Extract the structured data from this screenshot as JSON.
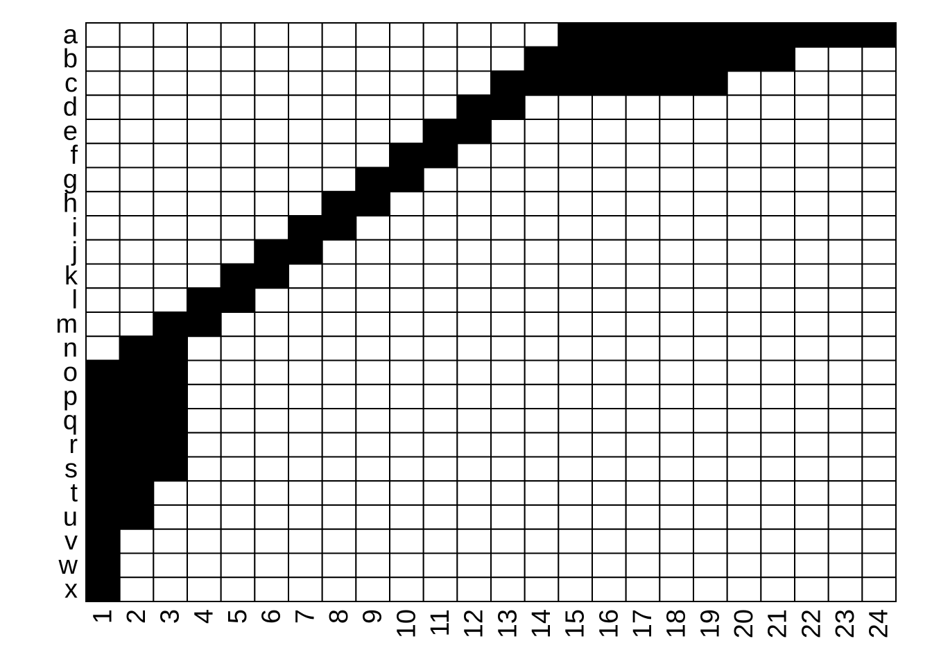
{
  "chart_data": {
    "type": "heatmap",
    "title": "",
    "xlabel": "",
    "ylabel": "",
    "rows": [
      "a",
      "b",
      "c",
      "d",
      "e",
      "f",
      "g",
      "h",
      "i",
      "j",
      "k",
      "l",
      "m",
      "n",
      "o",
      "p",
      "q",
      "r",
      "s",
      "t",
      "u",
      "v",
      "w",
      "x"
    ],
    "columns": [
      "1",
      "2",
      "3",
      "4",
      "5",
      "6",
      "7",
      "8",
      "9",
      "10",
      "11",
      "12",
      "13",
      "14",
      "15",
      "16",
      "17",
      "18",
      "19",
      "20",
      "21",
      "22",
      "23",
      "24"
    ],
    "filled_color": "#000000",
    "empty_color": "#ffffff",
    "grid": true,
    "values": [
      [
        0,
        0,
        0,
        0,
        0,
        0,
        0,
        0,
        0,
        0,
        0,
        0,
        0,
        0,
        1,
        1,
        1,
        1,
        1,
        1,
        1,
        1,
        1,
        1
      ],
      [
        0,
        0,
        0,
        0,
        0,
        0,
        0,
        0,
        0,
        0,
        0,
        0,
        0,
        1,
        1,
        1,
        1,
        1,
        1,
        1,
        1,
        0,
        0,
        0
      ],
      [
        0,
        0,
        0,
        0,
        0,
        0,
        0,
        0,
        0,
        0,
        0,
        0,
        1,
        1,
        1,
        1,
        1,
        1,
        1,
        0,
        0,
        0,
        0,
        0
      ],
      [
        0,
        0,
        0,
        0,
        0,
        0,
        0,
        0,
        0,
        0,
        0,
        1,
        1,
        0,
        0,
        0,
        0,
        0,
        0,
        0,
        0,
        0,
        0,
        0
      ],
      [
        0,
        0,
        0,
        0,
        0,
        0,
        0,
        0,
        0,
        0,
        1,
        1,
        0,
        0,
        0,
        0,
        0,
        0,
        0,
        0,
        0,
        0,
        0,
        0
      ],
      [
        0,
        0,
        0,
        0,
        0,
        0,
        0,
        0,
        0,
        1,
        1,
        0,
        0,
        0,
        0,
        0,
        0,
        0,
        0,
        0,
        0,
        0,
        0,
        0
      ],
      [
        0,
        0,
        0,
        0,
        0,
        0,
        0,
        0,
        1,
        1,
        0,
        0,
        0,
        0,
        0,
        0,
        0,
        0,
        0,
        0,
        0,
        0,
        0,
        0
      ],
      [
        0,
        0,
        0,
        0,
        0,
        0,
        0,
        1,
        1,
        0,
        0,
        0,
        0,
        0,
        0,
        0,
        0,
        0,
        0,
        0,
        0,
        0,
        0,
        0
      ],
      [
        0,
        0,
        0,
        0,
        0,
        0,
        1,
        1,
        0,
        0,
        0,
        0,
        0,
        0,
        0,
        0,
        0,
        0,
        0,
        0,
        0,
        0,
        0,
        0
      ],
      [
        0,
        0,
        0,
        0,
        0,
        1,
        1,
        0,
        0,
        0,
        0,
        0,
        0,
        0,
        0,
        0,
        0,
        0,
        0,
        0,
        0,
        0,
        0,
        0
      ],
      [
        0,
        0,
        0,
        0,
        1,
        1,
        0,
        0,
        0,
        0,
        0,
        0,
        0,
        0,
        0,
        0,
        0,
        0,
        0,
        0,
        0,
        0,
        0,
        0
      ],
      [
        0,
        0,
        0,
        1,
        1,
        0,
        0,
        0,
        0,
        0,
        0,
        0,
        0,
        0,
        0,
        0,
        0,
        0,
        0,
        0,
        0,
        0,
        0,
        0
      ],
      [
        0,
        0,
        1,
        1,
        0,
        0,
        0,
        0,
        0,
        0,
        0,
        0,
        0,
        0,
        0,
        0,
        0,
        0,
        0,
        0,
        0,
        0,
        0,
        0
      ],
      [
        0,
        1,
        1,
        0,
        0,
        0,
        0,
        0,
        0,
        0,
        0,
        0,
        0,
        0,
        0,
        0,
        0,
        0,
        0,
        0,
        0,
        0,
        0,
        0
      ],
      [
        1,
        1,
        1,
        0,
        0,
        0,
        0,
        0,
        0,
        0,
        0,
        0,
        0,
        0,
        0,
        0,
        0,
        0,
        0,
        0,
        0,
        0,
        0,
        0
      ],
      [
        1,
        1,
        1,
        0,
        0,
        0,
        0,
        0,
        0,
        0,
        0,
        0,
        0,
        0,
        0,
        0,
        0,
        0,
        0,
        0,
        0,
        0,
        0,
        0
      ],
      [
        1,
        1,
        1,
        0,
        0,
        0,
        0,
        0,
        0,
        0,
        0,
        0,
        0,
        0,
        0,
        0,
        0,
        0,
        0,
        0,
        0,
        0,
        0,
        0
      ],
      [
        1,
        1,
        1,
        0,
        0,
        0,
        0,
        0,
        0,
        0,
        0,
        0,
        0,
        0,
        0,
        0,
        0,
        0,
        0,
        0,
        0,
        0,
        0,
        0
      ],
      [
        1,
        1,
        1,
        0,
        0,
        0,
        0,
        0,
        0,
        0,
        0,
        0,
        0,
        0,
        0,
        0,
        0,
        0,
        0,
        0,
        0,
        0,
        0,
        0
      ],
      [
        1,
        1,
        0,
        0,
        0,
        0,
        0,
        0,
        0,
        0,
        0,
        0,
        0,
        0,
        0,
        0,
        0,
        0,
        0,
        0,
        0,
        0,
        0,
        0
      ],
      [
        1,
        1,
        0,
        0,
        0,
        0,
        0,
        0,
        0,
        0,
        0,
        0,
        0,
        0,
        0,
        0,
        0,
        0,
        0,
        0,
        0,
        0,
        0,
        0
      ],
      [
        1,
        0,
        0,
        0,
        0,
        0,
        0,
        0,
        0,
        0,
        0,
        0,
        0,
        0,
        0,
        0,
        0,
        0,
        0,
        0,
        0,
        0,
        0,
        0
      ],
      [
        1,
        0,
        0,
        0,
        0,
        0,
        0,
        0,
        0,
        0,
        0,
        0,
        0,
        0,
        0,
        0,
        0,
        0,
        0,
        0,
        0,
        0,
        0,
        0
      ],
      [
        1,
        0,
        0,
        0,
        0,
        0,
        0,
        0,
        0,
        0,
        0,
        0,
        0,
        0,
        0,
        0,
        0,
        0,
        0,
        0,
        0,
        0,
        0,
        0
      ]
    ]
  }
}
